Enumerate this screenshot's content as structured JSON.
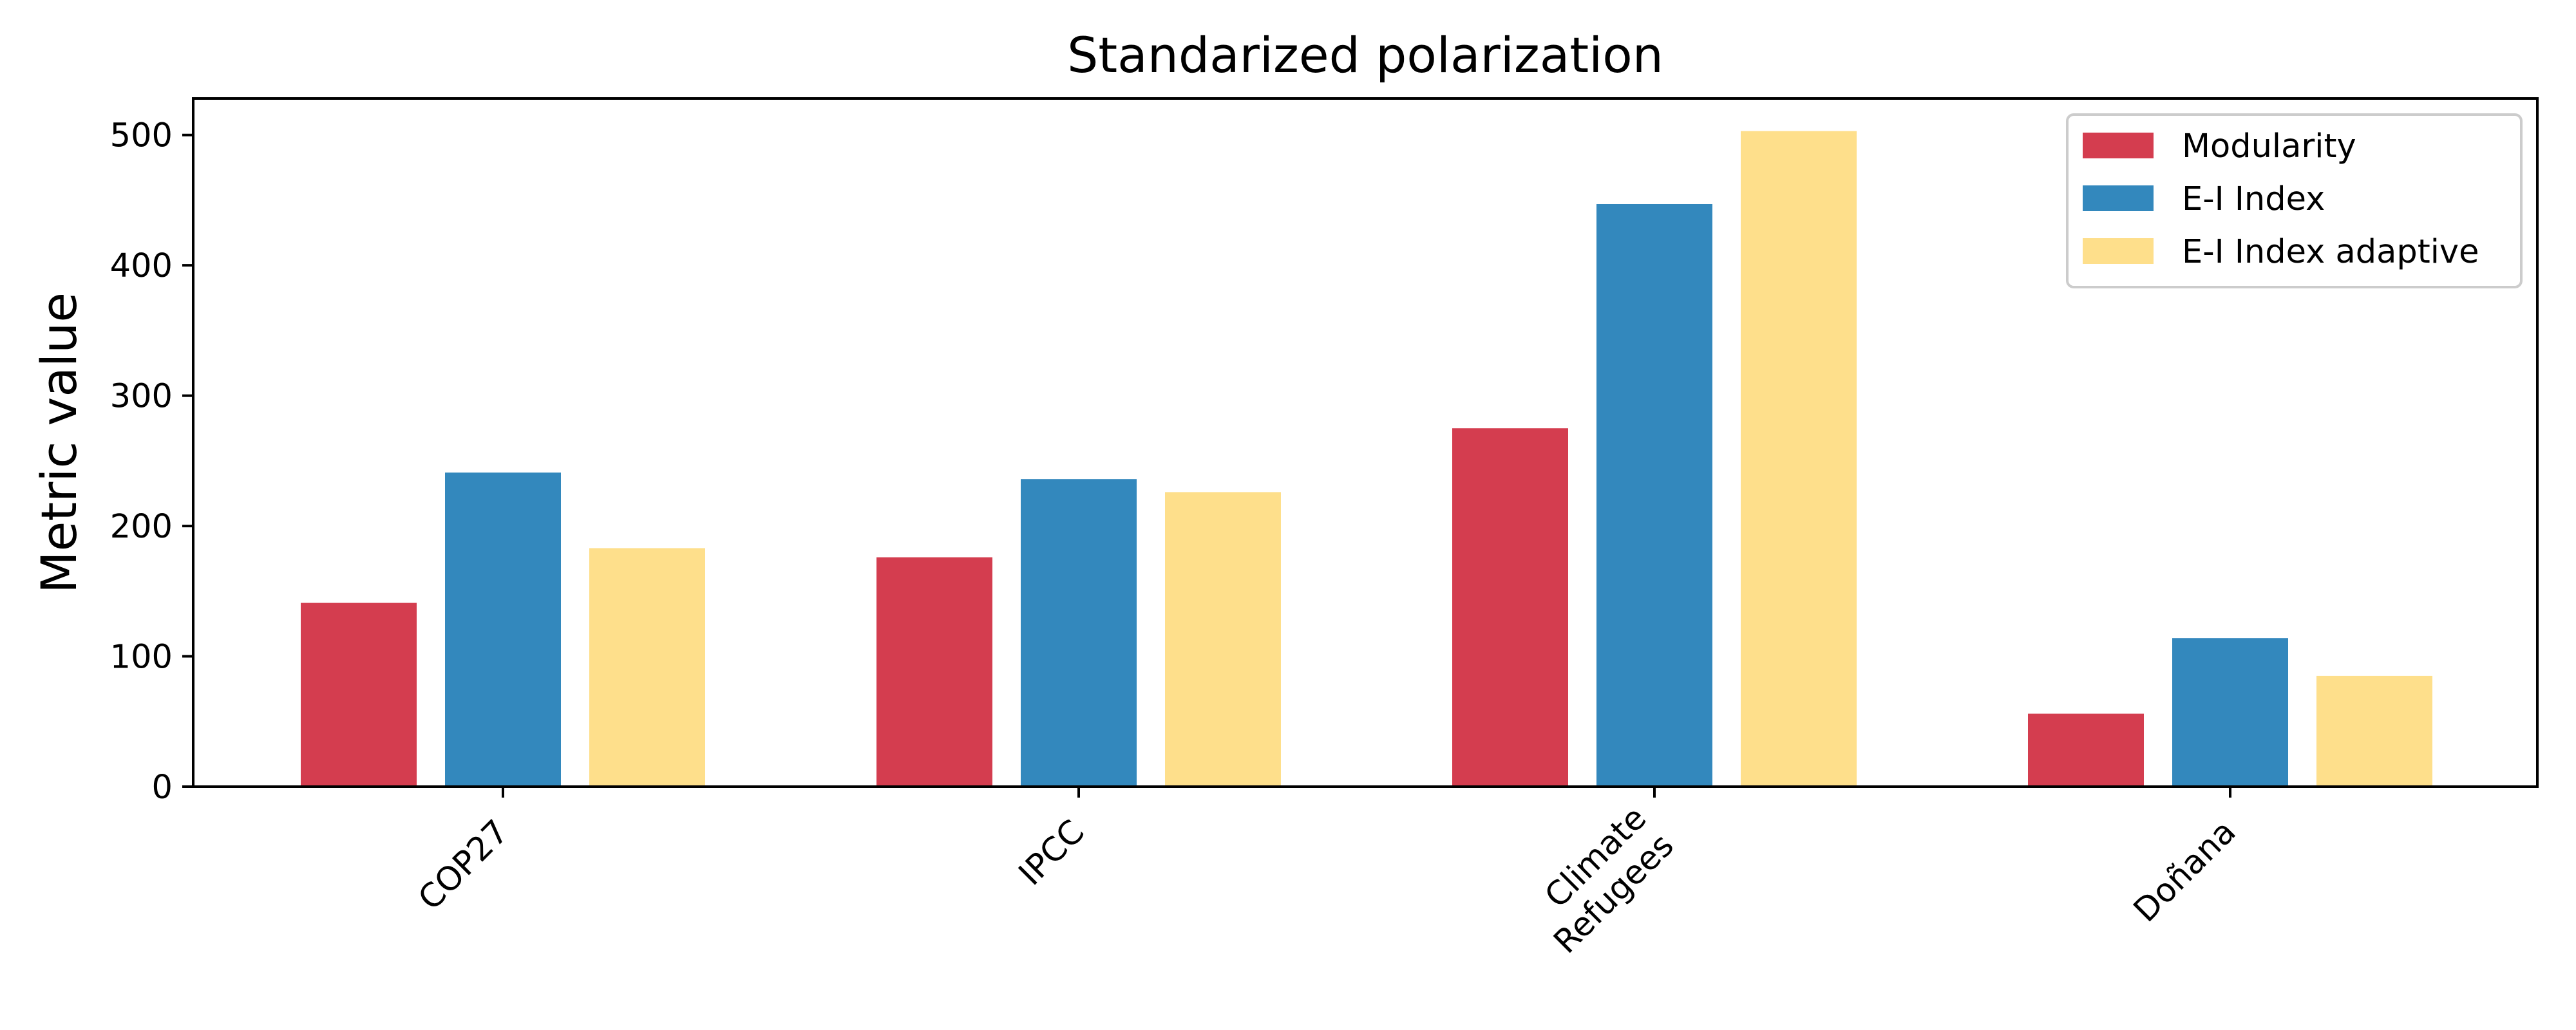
{
  "chart_data": {
    "type": "bar",
    "title": "Standarized polarization",
    "xlabel": "",
    "ylabel": "Metric value",
    "categories": [
      "COP27",
      "IPCC",
      "Climate\nRefugees",
      "Doñana"
    ],
    "series": [
      {
        "name": "Modularity",
        "color": "#d43d4f",
        "values": [
          141,
          176,
          275,
          56
        ]
      },
      {
        "name": "E-I Index",
        "color": "#3388bd",
        "values": [
          241,
          236,
          447,
          114
        ]
      },
      {
        "name": "E-I Index adaptive",
        "color": "#fedf8b",
        "values": [
          183,
          226,
          503,
          85
        ]
      }
    ],
    "yticks": [
      0,
      100,
      200,
      300,
      400,
      500
    ],
    "ylim": [
      0,
      528
    ],
    "grid": false,
    "legend_position": "top-right",
    "x_tick_rotation": -45
  }
}
